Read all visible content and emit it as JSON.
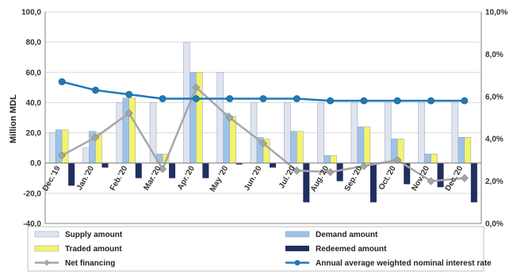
{
  "chart_data": {
    "type": "bar",
    "ylabel": "Million MDL",
    "ylim": [
      -40,
      100
    ],
    "y_ticks": [
      "100,0",
      "80,0",
      "60,0",
      "40,0",
      "20,0",
      "0,0",
      "-20,0",
      "-40,0"
    ],
    "y2lim": [
      0,
      10
    ],
    "y2_ticks": [
      "10,0%",
      "8,0%",
      "6,0%",
      "4,0%",
      "2,0%",
      "0,0%"
    ],
    "grid": true,
    "legend_position": "bottom",
    "categories": [
      "Dec.'19",
      "Jan.'20",
      "Feb.'20",
      "Mar.'20",
      "Apr.'20",
      "May '20",
      "Jun.'20",
      "Jul.'20",
      "Aug.'20",
      "Sep.'20",
      "Oct.'20",
      "Nov.'20",
      "Dec.'20"
    ],
    "series": [
      {
        "name": "Supply amount",
        "type": "bar",
        "axis": "left",
        "color": "#dfe4ef",
        "values": [
          20,
          10,
          40,
          40,
          80,
          60,
          40,
          40,
          40,
          40,
          40,
          40,
          40
        ]
      },
      {
        "name": "Demand amount",
        "type": "bar",
        "axis": "left",
        "color": "#9dc3e6",
        "values": [
          22,
          21,
          43,
          6,
          60,
          33,
          17,
          21,
          5,
          24,
          16,
          6,
          17
        ]
      },
      {
        "name": "Traded amount",
        "type": "bar",
        "axis": "left",
        "color": "#f3f36a",
        "values": [
          22,
          20,
          43,
          6,
          60,
          31,
          16,
          21,
          5,
          24,
          16,
          6,
          17
        ]
      },
      {
        "name": "Redeemed amount",
        "type": "bar",
        "axis": "left",
        "color": "#1f2f5e",
        "values": [
          -15,
          -3,
          -10,
          -10,
          -10,
          -1,
          -3,
          -26,
          -12,
          -26,
          -14,
          -16,
          -26
        ]
      },
      {
        "name": "Net financing",
        "type": "line",
        "axis": "left",
        "color": "#a6a6a6",
        "marker": "diamond",
        "values": [
          5,
          17,
          33,
          -4,
          50,
          30,
          13,
          -5,
          -6,
          -2,
          2,
          -12,
          -10
        ]
      },
      {
        "name": "Annual average weighted nominal interest rate",
        "type": "line",
        "axis": "right",
        "color": "#1f7ab8",
        "marker": "circle",
        "values": [
          6.7,
          6.3,
          6.1,
          5.9,
          5.9,
          5.9,
          5.9,
          5.9,
          5.8,
          5.8,
          5.8,
          5.8,
          5.8
        ]
      }
    ]
  }
}
